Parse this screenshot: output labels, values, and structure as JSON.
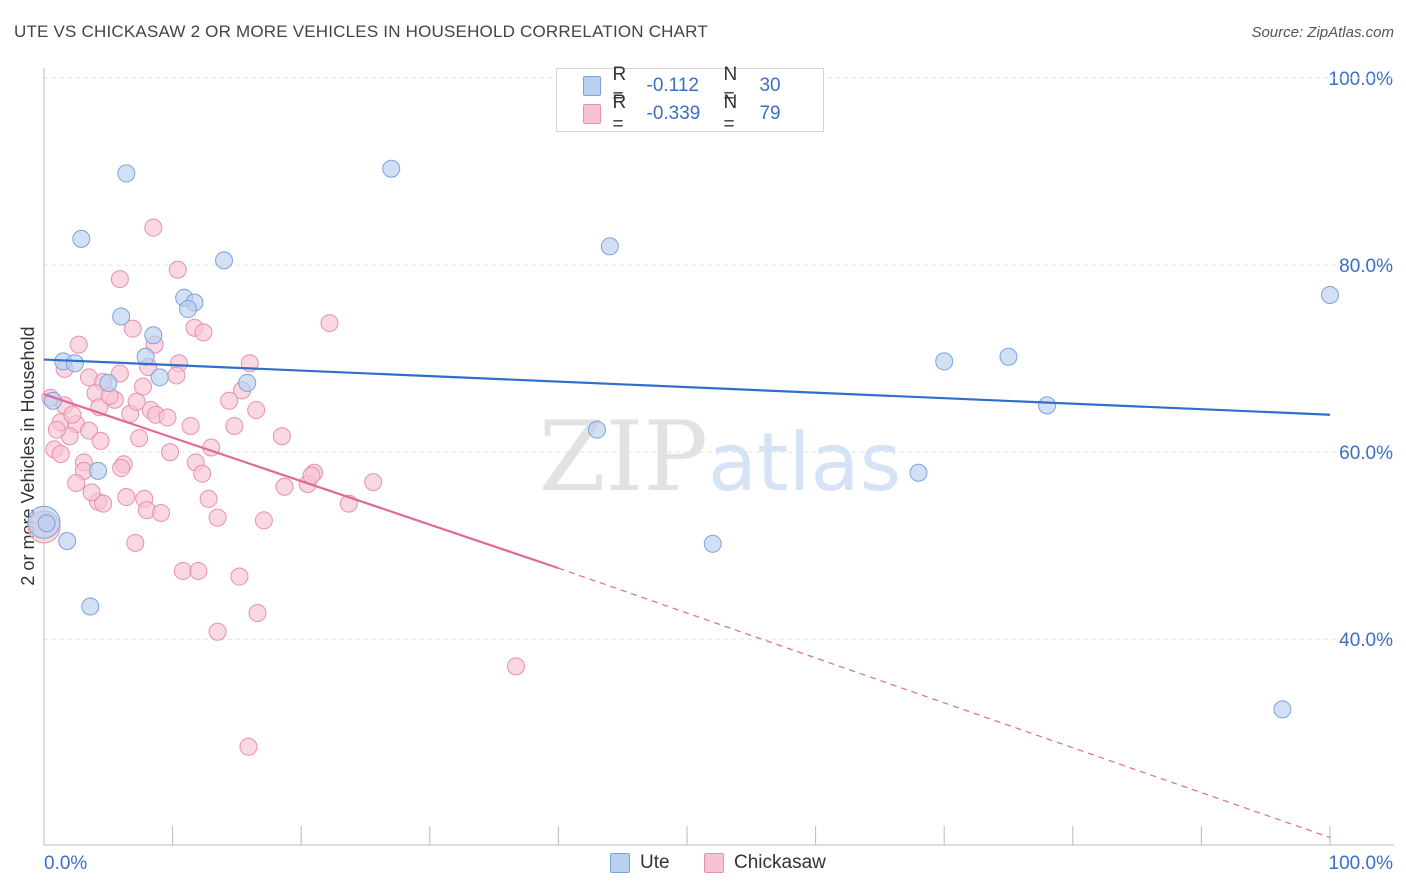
{
  "title": "UTE VS CHICKASAW 2 OR MORE VEHICLES IN HOUSEHOLD CORRELATION CHART",
  "source": "Source: ZipAtlas.com",
  "legend": {
    "ute": {
      "r_label": "R =",
      "r_value": "-0.112",
      "n_label": "N =",
      "n_value": "30"
    },
    "chickasaw": {
      "r_label": "R =",
      "r_value": "-0.339",
      "n_label": "N =",
      "n_value": "79"
    }
  },
  "colors": {
    "ute_fill": "#b9d0f0",
    "ute_stroke": "#7aa3dc",
    "ute_line": "#2f6fcc",
    "chickasaw_fill": "#f7c3d3",
    "chickasaw_stroke": "#e890ad",
    "chickasaw_line": "#e0689a",
    "tick_label": "#3a6fc4"
  },
  "chart_data": {
    "type": "scatter",
    "title": "UTE VS CHICKASAW 2 OR MORE VEHICLES IN HOUSEHOLD CORRELATION CHART",
    "xlabel": "",
    "ylabel": "2 or more Vehicles in Household",
    "xlim": [
      0,
      100
    ],
    "ylim": [
      18,
      100
    ],
    "x_tick_labels": [
      "0.0%",
      "100.0%"
    ],
    "y_ticks": [
      40,
      60,
      80,
      100
    ],
    "y_tick_labels": [
      "40.0%",
      "60.0%",
      "80.0%",
      "100.0%"
    ],
    "grid": true,
    "legend_position": "top-center",
    "watermark": "ZIPatlas",
    "series": [
      {
        "name": "Ute",
        "points": [
          [
            6.4,
            89.8
          ],
          [
            2.9,
            82.8
          ],
          [
            14,
            80.5
          ],
          [
            27,
            90.3
          ],
          [
            44,
            82.0
          ],
          [
            100,
            76.8
          ],
          [
            10.9,
            76.5
          ],
          [
            11.7,
            76.0
          ],
          [
            6.0,
            74.5
          ],
          [
            11.2,
            75.3
          ],
          [
            8.5,
            72.5
          ],
          [
            1.5,
            69.7
          ],
          [
            2.4,
            69.5
          ],
          [
            9.0,
            68.0
          ],
          [
            5.0,
            67.4
          ],
          [
            15.8,
            67.4
          ],
          [
            0.7,
            65.5
          ],
          [
            7.9,
            70.2
          ],
          [
            75,
            70.2
          ],
          [
            43,
            62.4
          ],
          [
            78,
            65.0
          ],
          [
            4.2,
            58.0
          ],
          [
            68,
            57.8
          ],
          [
            0,
            52.5
          ],
          [
            1.8,
            50.5
          ],
          [
            52,
            50.2
          ],
          [
            3.6,
            43.5
          ],
          [
            96.3,
            32.5
          ],
          [
            0.2,
            52.4
          ],
          [
            70,
            69.7
          ]
        ],
        "trend": {
          "x": [
            0,
            100
          ],
          "y": [
            69.9,
            64.0
          ]
        }
      },
      {
        "name": "Chickasaw",
        "points": [
          [
            8.5,
            84.0
          ],
          [
            10.4,
            79.5
          ],
          [
            5.9,
            78.5
          ],
          [
            22.2,
            73.8
          ],
          [
            6.9,
            73.2
          ],
          [
            11.7,
            73.3
          ],
          [
            12.4,
            72.8
          ],
          [
            2.7,
            71.5
          ],
          [
            8.6,
            71.5
          ],
          [
            10.5,
            69.5
          ],
          [
            16.0,
            69.5
          ],
          [
            1.6,
            68.9
          ],
          [
            8.1,
            69.1
          ],
          [
            3.5,
            68.0
          ],
          [
            5.9,
            68.4
          ],
          [
            10.3,
            68.2
          ],
          [
            4.6,
            67.5
          ],
          [
            7.7,
            67.0
          ],
          [
            4.0,
            66.3
          ],
          [
            15.4,
            66.6
          ],
          [
            0.5,
            65.8
          ],
          [
            5.5,
            65.6
          ],
          [
            1.6,
            65.0
          ],
          [
            4.3,
            64.8
          ],
          [
            6.7,
            64.1
          ],
          [
            8.3,
            64.5
          ],
          [
            7.2,
            65.4
          ],
          [
            8.7,
            64.0
          ],
          [
            1.3,
            63.2
          ],
          [
            2.5,
            63.0
          ],
          [
            3.5,
            62.3
          ],
          [
            11.4,
            62.8
          ],
          [
            14.8,
            62.8
          ],
          [
            2.0,
            61.7
          ],
          [
            4.4,
            61.2
          ],
          [
            7.4,
            61.5
          ],
          [
            18.5,
            61.7
          ],
          [
            13.0,
            60.5
          ],
          [
            0.8,
            60.3
          ],
          [
            1.3,
            59.8
          ],
          [
            3.1,
            58.9
          ],
          [
            6.2,
            58.7
          ],
          [
            11.8,
            58.9
          ],
          [
            6.0,
            58.3
          ],
          [
            3.1,
            58.0
          ],
          [
            12.3,
            57.7
          ],
          [
            21.0,
            57.8
          ],
          [
            2.5,
            56.7
          ],
          [
            18.7,
            56.3
          ],
          [
            20.5,
            56.6
          ],
          [
            25.6,
            56.8
          ],
          [
            4.2,
            54.7
          ],
          [
            4.6,
            54.5
          ],
          [
            6.4,
            55.2
          ],
          [
            7.8,
            55.0
          ],
          [
            8.0,
            53.8
          ],
          [
            9.1,
            53.5
          ],
          [
            23.7,
            54.5
          ],
          [
            13.5,
            53.0
          ],
          [
            17.1,
            52.7
          ],
          [
            0,
            52.0
          ],
          [
            10.8,
            47.3
          ],
          [
            12.0,
            47.3
          ],
          [
            15.2,
            46.7
          ],
          [
            16.6,
            42.8
          ],
          [
            13.5,
            40.8
          ],
          [
            36.7,
            37.1
          ],
          [
            15.9,
            28.5
          ],
          [
            1.0,
            62.4
          ],
          [
            9.6,
            63.7
          ],
          [
            12.8,
            55.0
          ],
          [
            2.2,
            64.0
          ],
          [
            16.5,
            64.5
          ],
          [
            5.1,
            66.0
          ],
          [
            9.8,
            60.0
          ],
          [
            14.4,
            65.5
          ],
          [
            3.7,
            55.7
          ],
          [
            20.8,
            57.5
          ],
          [
            7.1,
            50.3
          ]
        ],
        "trend": {
          "x": [
            0,
            40
          ],
          "y": [
            66.2,
            47.6
          ]
        },
        "trend_dashed": {
          "x": [
            40,
            100
          ],
          "y": [
            47.6,
            18.8
          ]
        }
      }
    ]
  }
}
